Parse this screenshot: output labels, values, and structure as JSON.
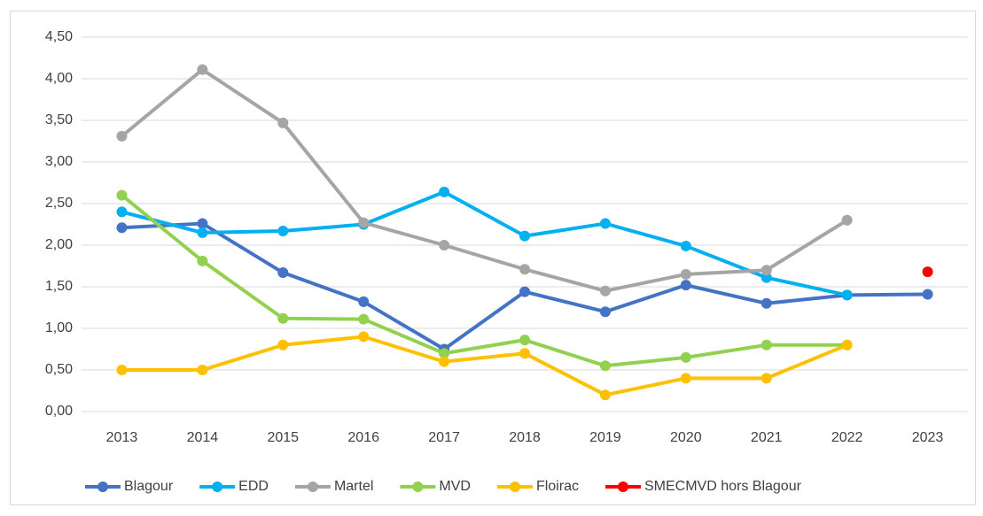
{
  "chart_data": {
    "type": "line",
    "categories": [
      "2013",
      "2014",
      "2015",
      "2016",
      "2017",
      "2018",
      "2019",
      "2020",
      "2021",
      "2022",
      "2023"
    ],
    "series": [
      {
        "name": "Blagour",
        "color": "#4472c4",
        "values": [
          2.21,
          2.26,
          1.67,
          1.32,
          0.75,
          1.44,
          1.2,
          1.52,
          1.3,
          1.4,
          1.41
        ]
      },
      {
        "name": "EDD",
        "color": "#00b0f0",
        "values": [
          2.4,
          2.15,
          2.17,
          2.25,
          2.64,
          2.11,
          2.26,
          1.99,
          1.61,
          1.4,
          null
        ]
      },
      {
        "name": "Martel",
        "color": "#a5a5a5",
        "values": [
          3.31,
          4.11,
          3.47,
          2.27,
          2.0,
          1.71,
          1.45,
          1.65,
          1.7,
          2.3,
          null
        ]
      },
      {
        "name": "MVD",
        "color": "#92d050",
        "values": [
          2.6,
          1.81,
          1.12,
          1.11,
          0.7,
          0.86,
          0.55,
          0.65,
          0.8,
          0.8,
          null
        ]
      },
      {
        "name": "Floirac",
        "color": "#ffc000",
        "values": [
          0.5,
          0.5,
          0.8,
          0.9,
          0.6,
          0.7,
          0.2,
          0.4,
          0.4,
          0.8,
          null
        ]
      },
      {
        "name": "SMECMVD hors Blagour",
        "color": "#ff0000",
        "values": [
          null,
          null,
          null,
          null,
          null,
          null,
          null,
          null,
          null,
          null,
          1.68
        ]
      }
    ],
    "ylim": [
      0,
      4.5
    ],
    "yticks": [
      {
        "value": 0,
        "label": "0,00"
      },
      {
        "value": 0.5,
        "label": "0,50"
      },
      {
        "value": 1,
        "label": "1,00"
      },
      {
        "value": 1.5,
        "label": "1,50"
      },
      {
        "value": 2,
        "label": "2,00"
      },
      {
        "value": 2.5,
        "label": "2,50"
      },
      {
        "value": 3,
        "label": "3,00"
      },
      {
        "value": 3.5,
        "label": "3,50"
      },
      {
        "value": 4,
        "label": "4,00"
      },
      {
        "value": 4.5,
        "label": "4,50"
      }
    ],
    "grid": true,
    "legend": "bottom"
  }
}
